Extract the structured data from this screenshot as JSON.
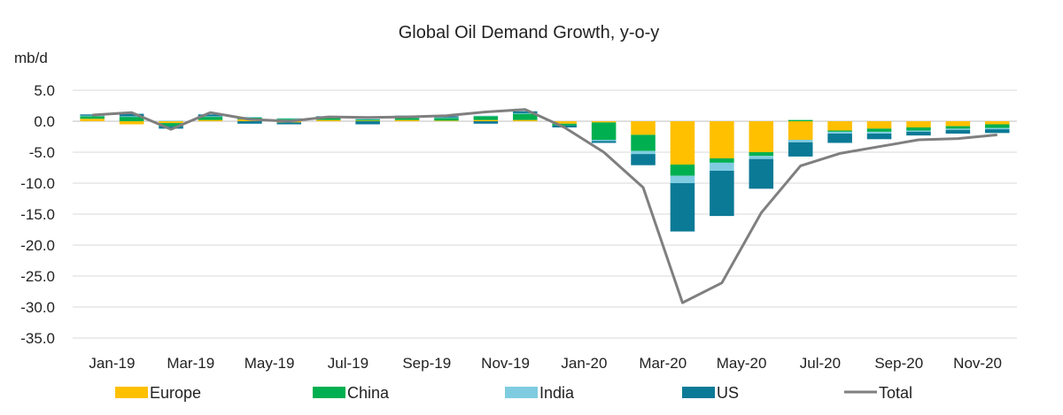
{
  "chart_data": {
    "type": "bar",
    "stacked": true,
    "title": "Global Oil Demand Growth, y-o-y",
    "ylabel": "mb/d",
    "ylim": [
      -35,
      5
    ],
    "yticks": [
      5,
      0,
      -5,
      -10,
      -15,
      -20,
      -25,
      -30,
      -35
    ],
    "ytick_labels": [
      "5.0",
      "0.0",
      "-5.0",
      "-10.0",
      "-15.0",
      "-20.0",
      "-25.0",
      "-30.0",
      "-35.0"
    ],
    "categories": [
      "Jan-19",
      "Feb-19",
      "Mar-19",
      "Apr-19",
      "May-19",
      "Jun-19",
      "Jul-19",
      "Aug-19",
      "Sep-19",
      "Oct-19",
      "Nov-19",
      "Dec-19",
      "Jan-20",
      "Feb-20",
      "Mar-20",
      "Apr-20",
      "May-20",
      "Jun-20",
      "Jul-20",
      "Aug-20",
      "Sep-20",
      "Oct-20",
      "Nov-20",
      "Dec-20"
    ],
    "xtick_labels": [
      "Jan-19",
      "",
      "Mar-19",
      "",
      "May-19",
      "",
      "Jul-19",
      "",
      "Sep-19",
      "",
      "Nov-19",
      "",
      "Jan-20",
      "",
      "Mar-20",
      "",
      "May-20",
      "",
      "Jul-20",
      "",
      "Sep-20",
      "",
      "Nov-20",
      ""
    ],
    "grid": true,
    "legend_position": "bottom",
    "series": [
      {
        "name": "Europe",
        "kind": "bar",
        "color": "#FFC000",
        "values": [
          0.4,
          -0.5,
          -0.3,
          0.2,
          0.3,
          -0.2,
          0.2,
          0.1,
          0.2,
          0.1,
          0.2,
          0.2,
          -0.4,
          -0.2,
          -2.2,
          -7.0,
          -6.0,
          -5.0,
          -3.0,
          -1.5,
          -1.2,
          -1.0,
          -0.8,
          -0.5
        ]
      },
      {
        "name": "China",
        "kind": "bar",
        "color": "#00B050",
        "values": [
          0.4,
          0.7,
          -0.5,
          0.5,
          0.3,
          0.4,
          0.3,
          0.2,
          0.3,
          0.4,
          0.6,
          1.0,
          -0.3,
          -2.8,
          -2.6,
          -1.8,
          -0.7,
          -0.6,
          0.2,
          -0.2,
          -0.5,
          -0.5,
          -0.4,
          -0.6
        ]
      },
      {
        "name": "India",
        "kind": "bar",
        "color": "#7FCCE0",
        "values": [
          0.1,
          0.1,
          0.1,
          0.1,
          0.1,
          0.1,
          0.1,
          0.1,
          0.1,
          0.1,
          0.1,
          0.1,
          0.0,
          -0.2,
          -0.5,
          -1.2,
          -1.3,
          -0.5,
          -0.4,
          -0.3,
          -0.3,
          -0.2,
          -0.2,
          -0.2
        ]
      },
      {
        "name": "US",
        "kind": "bar",
        "color": "#0B7A96",
        "values": [
          0.2,
          0.4,
          -0.4,
          0.3,
          -0.4,
          -0.3,
          0.2,
          -0.5,
          0.3,
          0.2,
          -0.4,
          0.3,
          -0.3,
          -0.3,
          -1.8,
          -7.8,
          -7.3,
          -4.8,
          -2.3,
          -1.5,
          -0.9,
          -0.6,
          -0.6,
          -0.6
        ]
      },
      {
        "name": "Total",
        "kind": "line",
        "color": "#7F7F7F",
        "values": [
          1.0,
          1.4,
          -1.3,
          1.4,
          0.3,
          0.0,
          0.7,
          0.6,
          0.7,
          0.9,
          1.5,
          1.9,
          -1.0,
          -5.0,
          -10.7,
          -29.3,
          -26.1,
          -14.8,
          -7.2,
          -5.2,
          -4.1,
          -3.0,
          -2.8,
          -2.2
        ]
      }
    ]
  }
}
